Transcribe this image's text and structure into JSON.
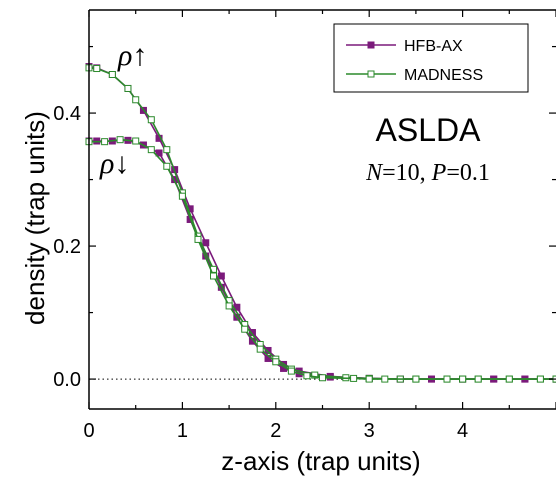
{
  "chart_data": {
    "type": "line",
    "xlabel": "z-axis (trap units)",
    "ylabel": "density (trap units)",
    "xlim": [
      0,
      5
    ],
    "ylim": [
      -0.045,
      0.555
    ],
    "x_ticks": [
      0,
      1,
      2,
      3,
      4
    ],
    "x_tick_labels": [
      "0",
      "1",
      "2",
      "3",
      "4"
    ],
    "y_ticks": [
      0.0,
      0.2,
      0.4
    ],
    "y_tick_labels": [
      "0.0",
      "0.2",
      "0.4"
    ],
    "grid": false,
    "legend_position": "top-right",
    "reference_line": {
      "y": 0,
      "style": "dotted"
    },
    "annotations": {
      "title": "ASLDA",
      "params_n": "N",
      "params_n_value": "=10, ",
      "params_p": "P",
      "params_p_value": "=0.1",
      "rho_up": "ρ↑",
      "rho_down": "ρ↓"
    },
    "series": [
      {
        "name": "HFB-AX",
        "color": "#7b1a7b",
        "marker": "filled-square",
        "curves": [
          {
            "label": "ρ↑",
            "x": [
              0,
              0.083,
              0.25,
              0.417,
              0.583,
              0.75,
              0.917,
              1.083,
              1.25,
              1.417,
              1.583,
              1.75,
              1.917,
              2.083,
              2.25,
              2.583,
              3.0,
              3.333,
              3.667,
              4.0,
              4.333,
              4.667,
              5.0
            ],
            "values": [
              0.47,
              0.468,
              0.458,
              0.437,
              0.404,
              0.362,
              0.315,
              0.256,
              0.205,
              0.155,
              0.108,
              0.07,
              0.043,
              0.022,
              0.012,
              0.004,
              0.001,
              0.0,
              0.0,
              0.0,
              0.0,
              0.0,
              0.0
            ]
          },
          {
            "label": "ρ↓",
            "x": [
              0,
              0.083,
              0.25,
              0.417,
              0.583,
              0.75,
              0.917,
              1.083,
              1.25,
              1.417,
              1.583,
              1.75,
              1.917,
              2.083,
              2.25,
              2.583,
              3.0,
              3.333,
              3.667,
              4.0,
              4.333,
              4.667,
              5.0
            ],
            "values": [
              0.358,
              0.358,
              0.358,
              0.359,
              0.352,
              0.34,
              0.3,
              0.24,
              0.185,
              0.138,
              0.093,
              0.057,
              0.031,
              0.016,
              0.008,
              0.003,
              0.001,
              0.0,
              0.0,
              0.0,
              0.0,
              0.0,
              0.0
            ]
          }
        ]
      },
      {
        "name": "MADNESS",
        "color": "#2c8a2c",
        "marker": "open-square",
        "curves": [
          {
            "label": "ρ↑",
            "x": [
              0,
              0.083,
              0.25,
              0.417,
              0.5,
              0.667,
              0.833,
              1.0,
              1.167,
              1.333,
              1.5,
              1.667,
              1.833,
              2.0,
              2.167,
              2.417,
              2.75,
              3.0,
              3.333,
              3.5,
              3.833,
              4.0,
              4.167,
              4.5,
              4.833,
              5.0
            ],
            "values": [
              0.468,
              0.467,
              0.458,
              0.437,
              0.42,
              0.39,
              0.345,
              0.28,
              0.215,
              0.165,
              0.118,
              0.082,
              0.052,
              0.03,
              0.015,
              0.006,
              0.002,
              0.001,
              0.0,
              0.0,
              0.0,
              0.0,
              0.0,
              0.0,
              0.0,
              0.0
            ]
          },
          {
            "label": "ρ↓",
            "x": [
              0,
              0.167,
              0.333,
              0.5,
              0.667,
              0.833,
              1.0,
              1.167,
              1.333,
              1.5,
              1.667,
              1.833,
              2.0,
              2.167,
              2.333,
              2.5,
              2.833,
              3.0,
              3.167,
              3.5,
              3.833,
              4.0,
              4.167,
              4.5,
              4.833,
              5.0
            ],
            "values": [
              0.357,
              0.357,
              0.36,
              0.358,
              0.345,
              0.32,
              0.275,
              0.21,
              0.155,
              0.11,
              0.075,
              0.045,
              0.026,
              0.012,
              0.005,
              0.002,
              0.001,
              0.0,
              0.0,
              0.0,
              0.0,
              0.0,
              0.0,
              0.0,
              0.0,
              0.0
            ]
          }
        ]
      }
    ]
  }
}
